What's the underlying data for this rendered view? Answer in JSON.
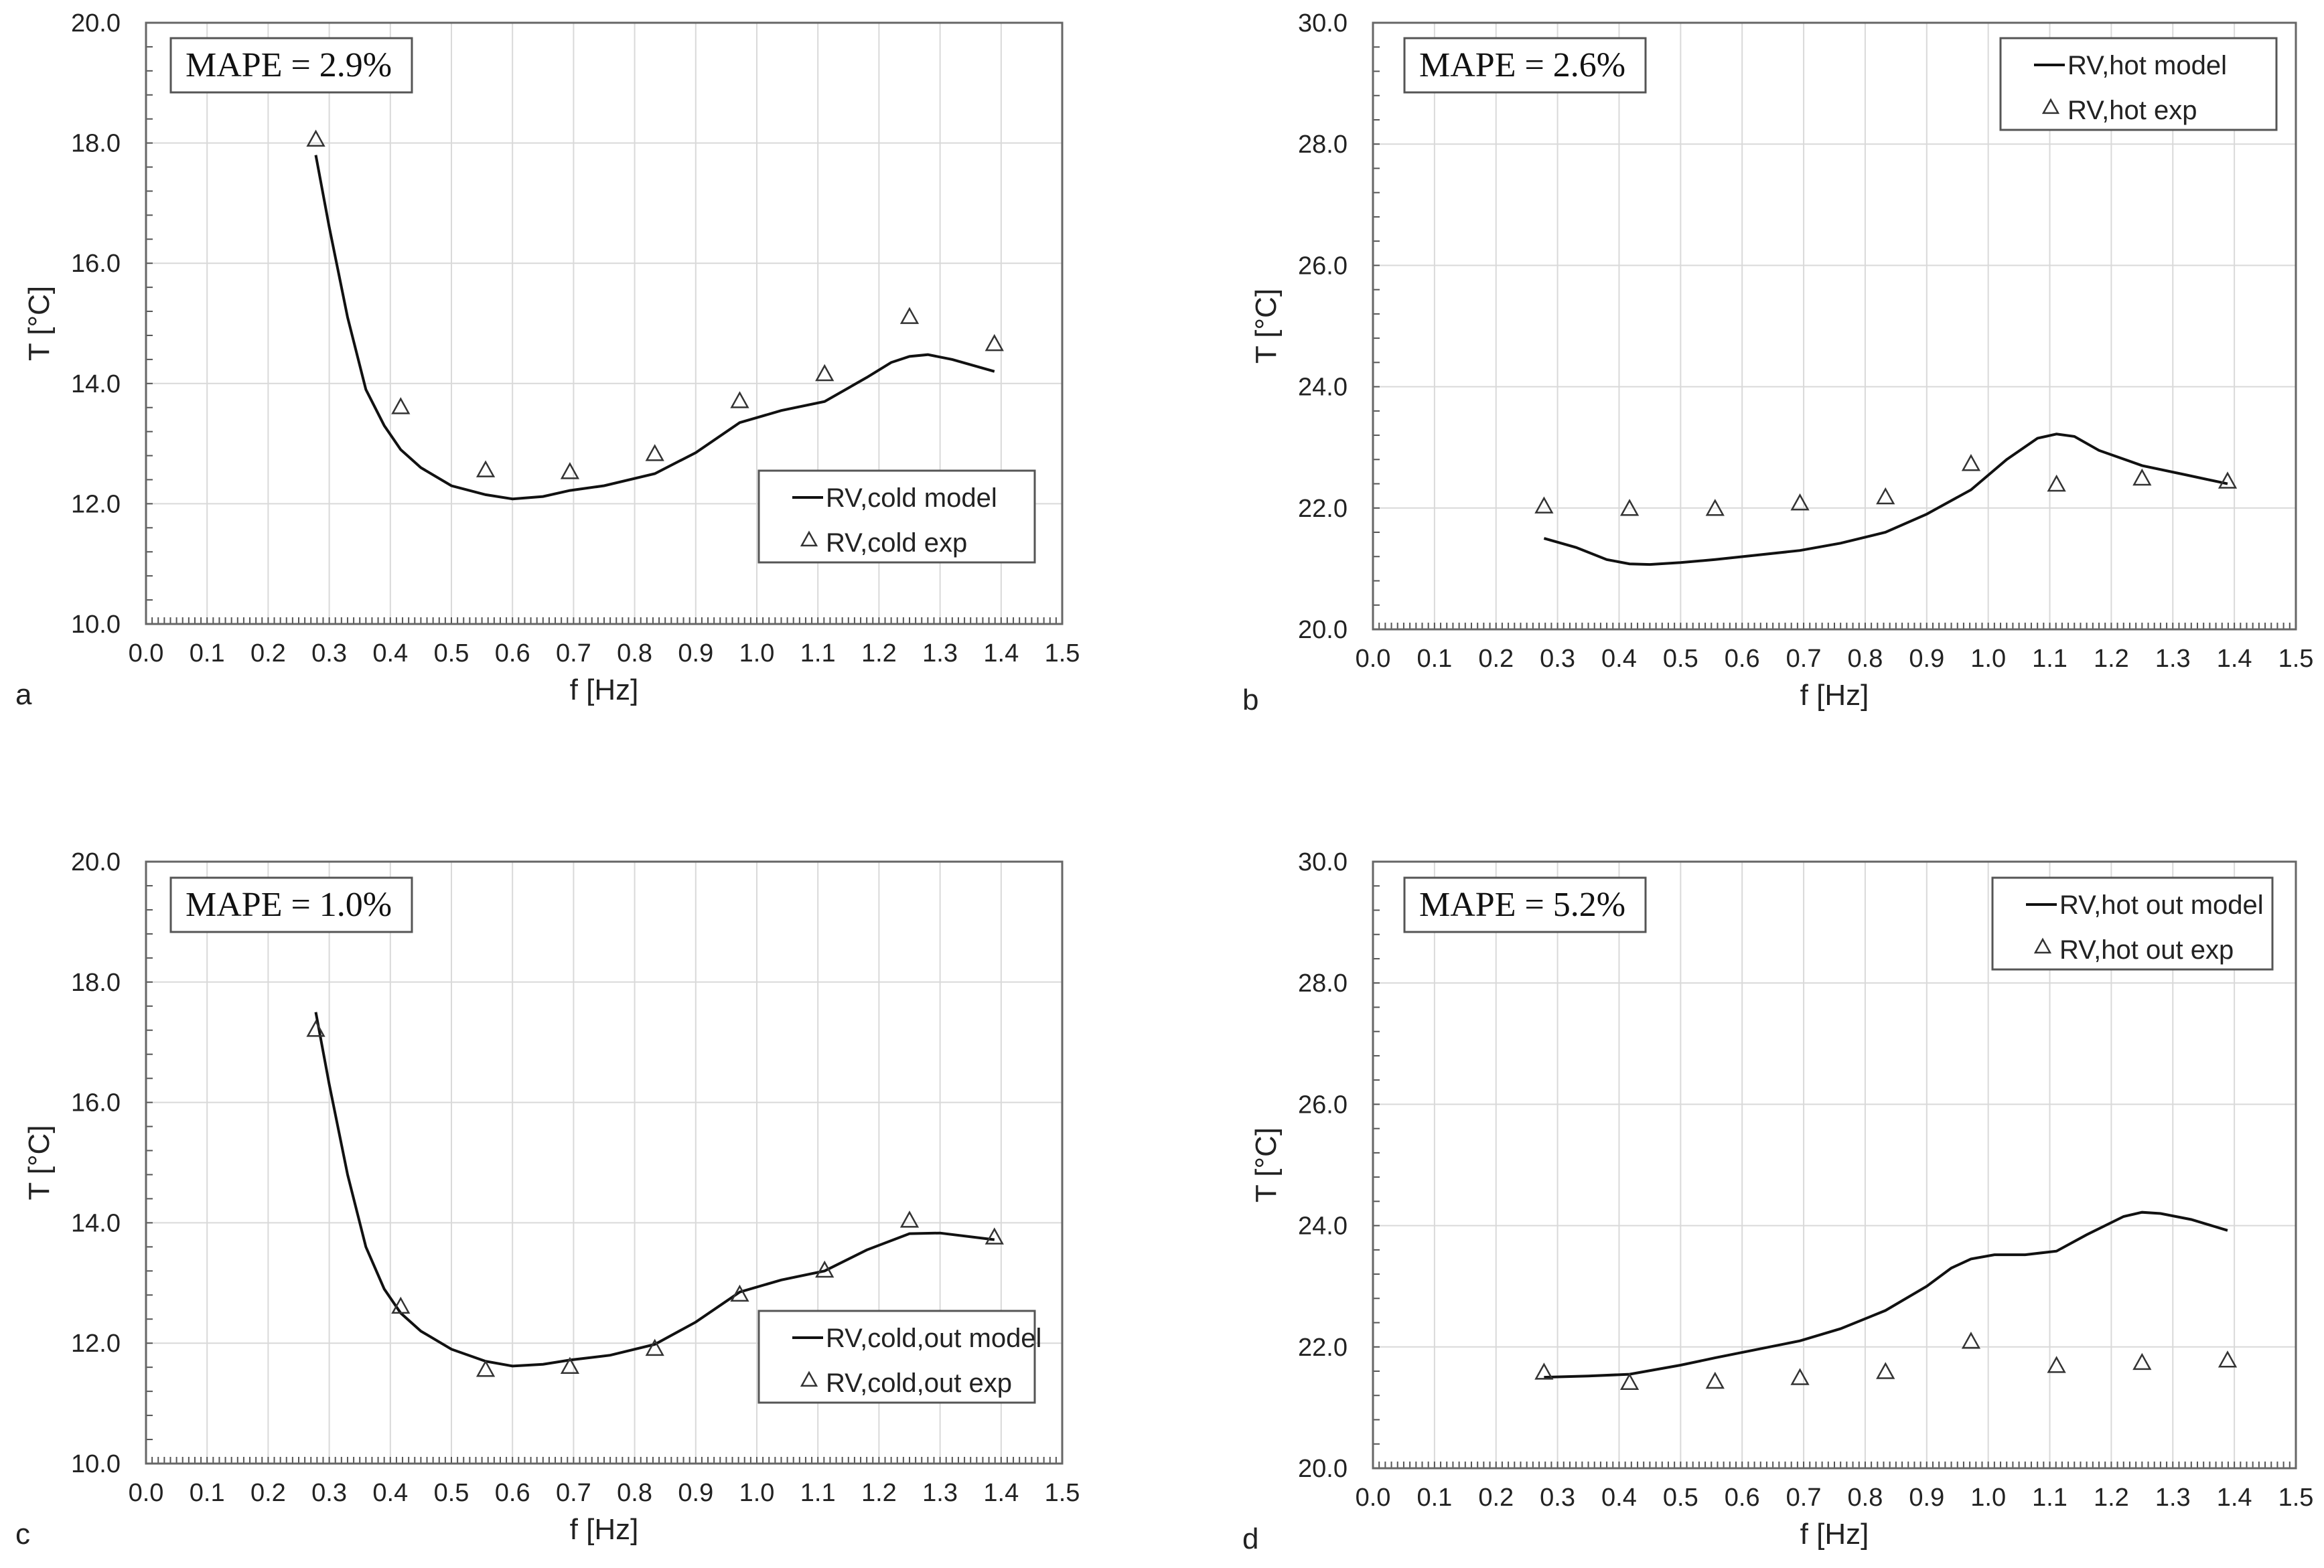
{
  "chart_data": [
    {
      "type": "line+scatter",
      "panel": "a",
      "mape": "MAPE = 2.9%",
      "xlabel": "f [Hz]",
      "ylabel": "T [°C]",
      "xlim": [
        0.0,
        1.5
      ],
      "ylim": [
        10.0,
        20.0
      ],
      "xticks": [
        "0.0",
        "0.1",
        "0.2",
        "0.3",
        "0.4",
        "0.5",
        "0.6",
        "0.7",
        "0.8",
        "0.9",
        "1.0",
        "1.1",
        "1.2",
        "1.3",
        "1.4",
        "1.5"
      ],
      "yticks": [
        "10.0",
        "12.0",
        "14.0",
        "16.0",
        "18.0",
        "20.0"
      ],
      "legend_position": "lower-right",
      "grid": true,
      "series": [
        {
          "name": "RV,cold model",
          "style": "line",
          "x": [
            0.278,
            0.3,
            0.33,
            0.36,
            0.39,
            0.417,
            0.45,
            0.5,
            0.556,
            0.6,
            0.65,
            0.694,
            0.75,
            0.833,
            0.9,
            0.972,
            1.04,
            1.111,
            1.18,
            1.22,
            1.25,
            1.28,
            1.32,
            1.389
          ],
          "y": [
            17.8,
            16.6,
            15.1,
            13.9,
            13.3,
            12.9,
            12.6,
            12.3,
            12.15,
            12.08,
            12.12,
            12.22,
            12.3,
            12.5,
            12.85,
            13.35,
            13.55,
            13.7,
            14.1,
            14.35,
            14.45,
            14.48,
            14.4,
            14.2
          ]
        },
        {
          "name": "RV,cold exp",
          "style": "triangle",
          "x": [
            0.278,
            0.417,
            0.556,
            0.694,
            0.833,
            0.972,
            1.111,
            1.25,
            1.389
          ],
          "y": [
            18.05,
            13.6,
            12.55,
            12.52,
            12.82,
            13.7,
            14.15,
            15.1,
            14.65
          ]
        }
      ]
    },
    {
      "type": "line+scatter",
      "panel": "b",
      "mape": "MAPE = 2.6%",
      "xlabel": "f [Hz]",
      "ylabel": "T [°C]",
      "xlim": [
        0.0,
        1.5
      ],
      "ylim": [
        20.0,
        30.0
      ],
      "xticks": [
        "0.0",
        "0.1",
        "0.2",
        "0.3",
        "0.4",
        "0.5",
        "0.6",
        "0.7",
        "0.8",
        "0.9",
        "1.0",
        "1.1",
        "1.2",
        "1.3",
        "1.4",
        "1.5"
      ],
      "yticks": [
        "20.0",
        "22.0",
        "24.0",
        "26.0",
        "28.0",
        "30.0"
      ],
      "legend_position": "top-right",
      "grid": true,
      "series": [
        {
          "name": "RV,hot model",
          "style": "line",
          "x": [
            0.278,
            0.33,
            0.38,
            0.417,
            0.45,
            0.5,
            0.556,
            0.62,
            0.694,
            0.76,
            0.833,
            0.9,
            0.972,
            1.03,
            1.08,
            1.111,
            1.14,
            1.18,
            1.25,
            1.32,
            1.389
          ],
          "y": [
            21.5,
            21.35,
            21.15,
            21.08,
            21.07,
            21.1,
            21.15,
            21.22,
            21.3,
            21.42,
            21.6,
            21.9,
            22.3,
            22.8,
            23.15,
            23.22,
            23.18,
            22.95,
            22.7,
            22.55,
            22.4
          ]
        },
        {
          "name": "RV,hot exp",
          "style": "triangle",
          "x": [
            0.278,
            0.417,
            0.556,
            0.694,
            0.833,
            0.972,
            1.111,
            1.25,
            1.389
          ],
          "y": [
            22.02,
            21.98,
            21.98,
            22.07,
            22.17,
            22.72,
            22.38,
            22.48,
            22.43
          ]
        }
      ]
    },
    {
      "type": "line+scatter",
      "panel": "c",
      "mape": "MAPE = 1.0%",
      "xlabel": "f [Hz]",
      "ylabel": "T [°C]",
      "xlim": [
        0.0,
        1.5
      ],
      "ylim": [
        10.0,
        20.0
      ],
      "xticks": [
        "0.0",
        "0.1",
        "0.2",
        "0.3",
        "0.4",
        "0.5",
        "0.6",
        "0.7",
        "0.8",
        "0.9",
        "1.0",
        "1.1",
        "1.2",
        "1.3",
        "1.4",
        "1.5"
      ],
      "yticks": [
        "10.0",
        "12.0",
        "14.0",
        "16.0",
        "18.0",
        "20.0"
      ],
      "legend_position": "lower-right",
      "grid": true,
      "series": [
        {
          "name": "RV,cold,out model",
          "style": "line",
          "x": [
            0.278,
            0.3,
            0.33,
            0.36,
            0.39,
            0.417,
            0.45,
            0.5,
            0.556,
            0.6,
            0.65,
            0.694,
            0.76,
            0.833,
            0.9,
            0.972,
            1.04,
            1.111,
            1.18,
            1.25,
            1.3,
            1.389
          ],
          "y": [
            17.5,
            16.3,
            14.8,
            13.6,
            12.9,
            12.5,
            12.2,
            11.9,
            11.7,
            11.62,
            11.65,
            11.72,
            11.8,
            11.98,
            12.35,
            12.85,
            13.05,
            13.2,
            13.55,
            13.82,
            13.83,
            13.72
          ]
        },
        {
          "name": "RV,cold,out exp",
          "style": "triangle",
          "x": [
            0.278,
            0.417,
            0.556,
            0.694,
            0.833,
            0.972,
            1.111,
            1.25,
            1.389
          ],
          "y": [
            17.2,
            12.6,
            11.55,
            11.6,
            11.9,
            12.8,
            13.2,
            14.03,
            13.75
          ]
        }
      ]
    },
    {
      "type": "line+scatter",
      "panel": "d",
      "mape": "MAPE = 5.2%",
      "xlabel": "f [Hz]",
      "ylabel": "T [°C]",
      "xlim": [
        0.0,
        1.5
      ],
      "ylim": [
        20.0,
        30.0
      ],
      "xticks": [
        "0.0",
        "0.1",
        "0.2",
        "0.3",
        "0.4",
        "0.5",
        "0.6",
        "0.7",
        "0.8",
        "0.9",
        "1.0",
        "1.1",
        "1.2",
        "1.3",
        "1.4",
        "1.5"
      ],
      "yticks": [
        "20.0",
        "22.0",
        "24.0",
        "26.0",
        "28.0",
        "30.0"
      ],
      "legend_position": "top-right",
      "grid": true,
      "series": [
        {
          "name": "RV,hot out model",
          "style": "line",
          "x": [
            0.278,
            0.35,
            0.417,
            0.5,
            0.556,
            0.62,
            0.694,
            0.76,
            0.833,
            0.9,
            0.94,
            0.972,
            1.01,
            1.06,
            1.111,
            1.16,
            1.22,
            1.25,
            1.28,
            1.33,
            1.389
          ],
          "y": [
            21.5,
            21.52,
            21.55,
            21.7,
            21.82,
            21.95,
            22.1,
            22.3,
            22.6,
            23.0,
            23.3,
            23.45,
            23.52,
            23.52,
            23.58,
            23.85,
            24.15,
            24.22,
            24.2,
            24.1,
            23.92
          ]
        },
        {
          "name": "RV,hot out exp",
          "style": "triangle",
          "x": [
            0.278,
            0.417,
            0.556,
            0.694,
            0.833,
            0.972,
            1.111,
            1.25,
            1.389
          ],
          "y": [
            21.57,
            21.4,
            21.42,
            21.48,
            21.58,
            22.08,
            21.68,
            21.73,
            21.77
          ]
        }
      ]
    }
  ]
}
